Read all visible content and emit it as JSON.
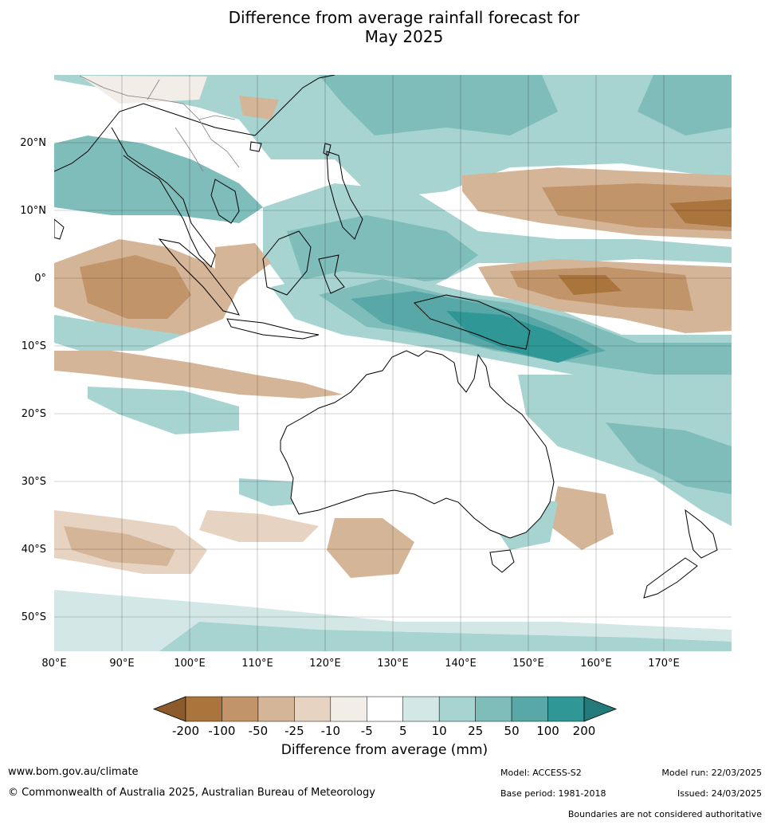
{
  "title": {
    "line1": "Difference from average rainfall forecast for",
    "line2": "May 2025"
  },
  "map": {
    "lat_labels": [
      "20°N",
      "10°N",
      "0°",
      "10°S",
      "20°S",
      "30°S",
      "40°S",
      "50°S"
    ],
    "lon_labels": [
      "80°E",
      "90°E",
      "100°E",
      "110°E",
      "120°E",
      "130°E",
      "140°E",
      "150°E",
      "160°E",
      "170°E"
    ],
    "extent": {
      "lon_min": 80,
      "lon_max": 180,
      "lat_min": -55,
      "lat_max": 30
    }
  },
  "colorbar": {
    "title": "Difference from average (mm)",
    "tick_labels": [
      "-200",
      "-100",
      "-50",
      "-25",
      "-10",
      "-5",
      "5",
      "10",
      "25",
      "50",
      "100",
      "200"
    ],
    "colors": [
      "#8d5a2b",
      "#aa743d",
      "#c1946a",
      "#d5b597",
      "#e6d3c2",
      "#f2ede7",
      "#ffffff",
      "#d3e8e6",
      "#a7d3d1",
      "#7fbdbb",
      "#57a8a7",
      "#2f9896",
      "#24797a"
    ]
  },
  "footer": {
    "website": "www.bom.gov.au/climate",
    "copyright": "© Commonwealth of Australia 2025, Australian Bureau of Meteorology",
    "model": "Model: ACCESS-S2",
    "base_period": "Base period: 1981-2018",
    "model_run": "Model run: 22/03/2025",
    "issued": "Issued: 24/03/2025",
    "disclaimer": "Boundaries are not considered authoritative"
  }
}
